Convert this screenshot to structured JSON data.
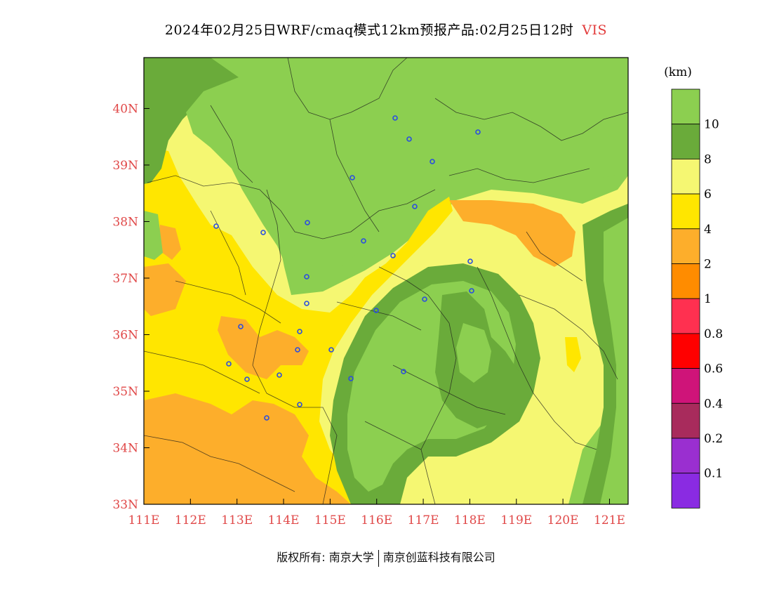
{
  "title": {
    "main": "2024年02月25日WRF/cmaq模式12km预报产品:02月25日12时",
    "variable": "VIS"
  },
  "map": {
    "lon_range": [
      111,
      121.4
    ],
    "lat_range": [
      33,
      40.9
    ],
    "lon_ticks": [
      "111E",
      "112E",
      "113E",
      "114E",
      "115E",
      "116E",
      "117E",
      "118E",
      "119E",
      "120E",
      "121E"
    ],
    "lat_ticks": [
      "33N",
      "34N",
      "35N",
      "36N",
      "37N",
      "38N",
      "39N",
      "40N"
    ],
    "tick_color": "#e04848"
  },
  "legend": {
    "unit": "(km)",
    "bins": [
      {
        "label": "",
        "color": "#8ccf50"
      },
      {
        "label": "10",
        "color": "#6aab3a"
      },
      {
        "label": "8",
        "color": "#f5f772"
      },
      {
        "label": "6",
        "color": "#ffe600"
      },
      {
        "label": "4",
        "color": "#fdae2b"
      },
      {
        "label": "2",
        "color": "#ff8c00"
      },
      {
        "label": "1",
        "color": "#ff3050"
      },
      {
        "label": "0.8",
        "color": "#ff0000"
      },
      {
        "label": "0.6",
        "color": "#cf1479"
      },
      {
        "label": "0.4",
        "color": "#a82b5c"
      },
      {
        "label": "0.2",
        "color": "#9a2fd0"
      },
      {
        "label": "0.1",
        "color": "#8a2be2"
      }
    ]
  },
  "footer": {
    "left": "版权所有: 南京大学",
    "right": "南京创蓝科技有限公司"
  }
}
